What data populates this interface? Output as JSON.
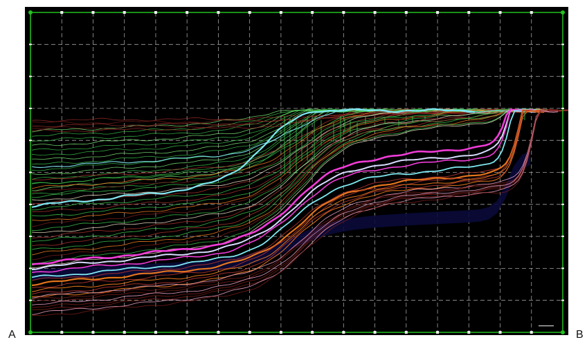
{
  "labels": {
    "start": "A",
    "end": "B"
  },
  "colors": {
    "background": "#000000",
    "frame": "#22c21f",
    "grid": "#d8d8d8",
    "marker": "#f2f2f2"
  },
  "line_palette": {
    "green": "#39c04a",
    "bright_green": "#7ef07a",
    "orange": "#f07a1e",
    "red": "#a8322e",
    "dark_red": "#7a1f1a",
    "magenta": "#f03cd8",
    "cyan": "#7fe8f2",
    "pink": "#f2a3c8",
    "white_blue": "#d8dcff",
    "pale": "#e8d8c0"
  }
}
